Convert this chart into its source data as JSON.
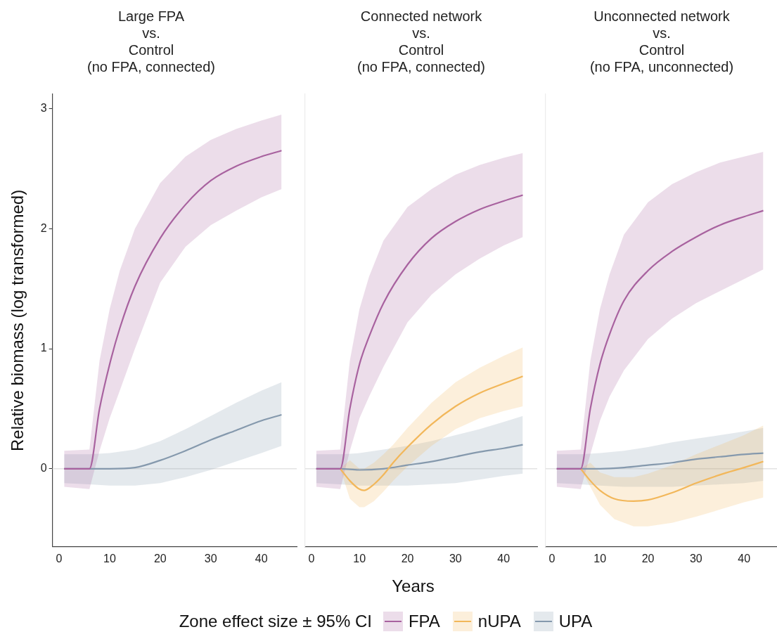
{
  "chart_data": [
    {
      "type": "line",
      "title": "Large FPA\nvs.\nControl\n(no FPA, connected)",
      "ylabel": "Relative biomass (log transformed)",
      "legend": "bottom",
      "xlim": [
        -1.3,
        47
      ],
      "xticks": [
        0,
        10,
        20,
        30,
        40
      ],
      "ylim": [
        -0.65,
        3.12
      ],
      "yticks": [
        0,
        1,
        2,
        3
      ],
      "grid": false,
      "marker": "none",
      "line_style": "solid",
      "ref_lines": [
        {
          "axis": "y",
          "value": 0,
          "color": "#e3e3e3"
        }
      ],
      "series": [
        {
          "name": "FPA",
          "color": "#a8629f",
          "x": [
            1,
            6,
            8,
            10,
            12,
            15,
            20,
            25,
            30,
            35,
            40,
            44
          ],
          "values": [
            0,
            0,
            0.5,
            0.87,
            1.17,
            1.52,
            1.92,
            2.2,
            2.4,
            2.52,
            2.6,
            2.65
          ],
          "lower": [
            -0.15,
            -0.17,
            0.15,
            0.42,
            0.65,
            1.0,
            1.55,
            1.85,
            2.03,
            2.15,
            2.26,
            2.33
          ],
          "upper": [
            0.15,
            0.16,
            0.9,
            1.33,
            1.65,
            2.0,
            2.38,
            2.6,
            2.74,
            2.83,
            2.9,
            2.95
          ]
        },
        {
          "name": "UPA",
          "color": "#8599ad",
          "x": [
            1,
            6,
            10,
            15,
            20,
            25,
            30,
            35,
            40,
            44
          ],
          "values": [
            0,
            0,
            0,
            0.01,
            0.07,
            0.15,
            0.24,
            0.32,
            0.4,
            0.45
          ],
          "lower": [
            -0.12,
            -0.13,
            -0.14,
            -0.14,
            -0.12,
            -0.07,
            -0.01,
            0.06,
            0.13,
            0.19
          ],
          "upper": [
            0.12,
            0.12,
            0.13,
            0.16,
            0.23,
            0.33,
            0.44,
            0.55,
            0.65,
            0.72
          ]
        }
      ]
    },
    {
      "type": "line",
      "title": "Connected network\nvs.\nControl\n(no FPA, connected)",
      "xlabel": "Years",
      "legend": "bottom",
      "legend_title": "Zone effect size ± 95% CI",
      "xlim": [
        -1.3,
        47
      ],
      "xticks": [
        0,
        10,
        20,
        30,
        40
      ],
      "ylim": [
        -0.65,
        3.12
      ],
      "yticks": [
        0,
        1,
        2,
        3
      ],
      "tick_labels": "x",
      "grid": false,
      "marker": "none",
      "line_style": "solid",
      "ref_lines": [
        {
          "axis": "y",
          "value": 0,
          "color": "#e3e3e3"
        }
      ],
      "series": [
        {
          "name": "FPA",
          "color": "#a8629f",
          "x": [
            1,
            6,
            8,
            10,
            12,
            15,
            20,
            25,
            30,
            35,
            40,
            44
          ],
          "values": [
            0,
            0,
            0.5,
            0.87,
            1.1,
            1.38,
            1.7,
            1.92,
            2.06,
            2.16,
            2.23,
            2.28
          ],
          "lower": [
            -0.15,
            -0.17,
            0.15,
            0.42,
            0.6,
            0.85,
            1.22,
            1.45,
            1.62,
            1.75,
            1.86,
            1.93
          ],
          "upper": [
            0.15,
            0.16,
            0.9,
            1.33,
            1.6,
            1.9,
            2.18,
            2.33,
            2.45,
            2.53,
            2.59,
            2.63
          ]
        },
        {
          "name": "nUPA",
          "color": "#f2b75a",
          "x": [
            6,
            8,
            10,
            11,
            13,
            15,
            17,
            20,
            25,
            30,
            35,
            40,
            44
          ],
          "values": [
            0,
            -0.1,
            -0.17,
            -0.18,
            -0.13,
            -0.05,
            0.05,
            0.18,
            0.37,
            0.52,
            0.63,
            0.71,
            0.77
          ],
          "lower": [
            0,
            -0.25,
            -0.32,
            -0.32,
            -0.27,
            -0.19,
            -0.1,
            0.02,
            0.19,
            0.33,
            0.42,
            0.48,
            0.52
          ],
          "upper": [
            0,
            0.07,
            0,
            0,
            0.05,
            0.12,
            0.2,
            0.34,
            0.55,
            0.72,
            0.84,
            0.94,
            1.01
          ]
        },
        {
          "name": "UPA",
          "color": "#8599ad",
          "x": [
            1,
            6,
            10,
            15,
            20,
            25,
            30,
            35,
            40,
            44
          ],
          "values": [
            0,
            0,
            -0.01,
            0,
            0.03,
            0.06,
            0.1,
            0.14,
            0.17,
            0.2
          ],
          "lower": [
            -0.12,
            -0.13,
            -0.14,
            -0.14,
            -0.14,
            -0.13,
            -0.12,
            -0.09,
            -0.06,
            -0.04
          ],
          "upper": [
            0.12,
            0.12,
            0.13,
            0.16,
            0.19,
            0.23,
            0.28,
            0.33,
            0.39,
            0.44
          ]
        }
      ]
    },
    {
      "type": "line",
      "title": "Unconnected network\nvs.\nControl\n(no FPA, unconnected)",
      "legend": "bottom",
      "xlim": [
        -1.3,
        47
      ],
      "xticks": [
        0,
        10,
        20,
        30,
        40
      ],
      "ylim": [
        -0.65,
        3.12
      ],
      "yticks": [
        0,
        1,
        2,
        3
      ],
      "tick_labels": "x",
      "grid": false,
      "marker": "none",
      "line_style": "solid",
      "ref_lines": [
        {
          "axis": "y",
          "value": 0,
          "color": "#e3e3e3"
        }
      ],
      "series": [
        {
          "name": "FPA",
          "color": "#a8629f",
          "x": [
            1,
            6,
            8,
            10,
            12,
            15,
            20,
            25,
            30,
            35,
            40,
            44
          ],
          "values": [
            0,
            0,
            0.5,
            0.87,
            1.12,
            1.4,
            1.65,
            1.81,
            1.93,
            2.03,
            2.1,
            2.15
          ],
          "lower": [
            -0.15,
            -0.17,
            0.12,
            0.4,
            0.6,
            0.82,
            1.08,
            1.25,
            1.38,
            1.48,
            1.58,
            1.66
          ],
          "upper": [
            0.15,
            0.16,
            0.9,
            1.33,
            1.62,
            1.95,
            2.22,
            2.37,
            2.47,
            2.55,
            2.6,
            2.64
          ]
        },
        {
          "name": "nUPA",
          "color": "#f2b75a",
          "x": [
            6,
            8,
            10,
            13,
            17,
            20,
            25,
            30,
            35,
            40,
            44
          ],
          "values": [
            0,
            -0.1,
            -0.18,
            -0.25,
            -0.27,
            -0.26,
            -0.2,
            -0.12,
            -0.05,
            0.01,
            0.06
          ],
          "lower": [
            0,
            -0.15,
            -0.3,
            -0.42,
            -0.48,
            -0.48,
            -0.45,
            -0.4,
            -0.34,
            -0.28,
            -0.24
          ],
          "upper": [
            0,
            0.05,
            -0.03,
            -0.07,
            -0.07,
            -0.04,
            0.03,
            0.12,
            0.2,
            0.28,
            0.36
          ]
        },
        {
          "name": "UPA",
          "color": "#8599ad",
          "x": [
            1,
            6,
            10,
            15,
            20,
            25,
            30,
            35,
            40,
            44
          ],
          "values": [
            0,
            0,
            0,
            0.01,
            0.03,
            0.05,
            0.08,
            0.1,
            0.12,
            0.13
          ],
          "lower": [
            -0.12,
            -0.13,
            -0.14,
            -0.15,
            -0.15,
            -0.15,
            -0.14,
            -0.13,
            -0.12,
            -0.1
          ],
          "upper": [
            0.12,
            0.12,
            0.13,
            0.15,
            0.18,
            0.22,
            0.25,
            0.28,
            0.31,
            0.34
          ]
        }
      ]
    }
  ]
}
